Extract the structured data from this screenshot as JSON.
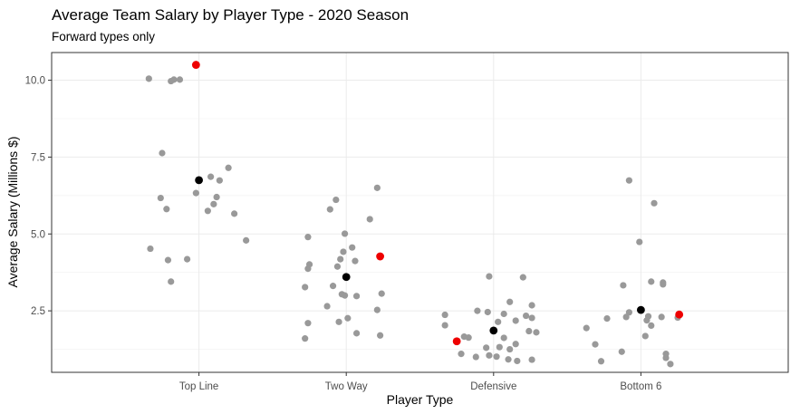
{
  "chart_data": {
    "type": "scatter",
    "title": "Average Team Salary by Player Type - 2020 Season",
    "subtitle": "Forward types only",
    "xlabel": "Player Type",
    "ylabel": "Average Salary (Millions $)",
    "categories": [
      "Top Line",
      "Two Way",
      "Defensive",
      "Bottom 6"
    ],
    "ylim": [
      0.5,
      10.9
    ],
    "y_ticks": [
      2.5,
      5.0,
      7.5,
      10.0
    ],
    "y_tick_labels": [
      "2.5",
      "5.0",
      "7.5",
      "10.0"
    ],
    "grid": true,
    "legend": "none",
    "colors": {
      "points": "#999999",
      "mean": "#000000",
      "highlight": "#ee0000"
    },
    "series": [
      {
        "role": "points",
        "points": [
          {
            "category": "Top Line",
            "jitter": -0.34,
            "y": 10.05
          },
          {
            "category": "Top Line",
            "jitter": -0.19,
            "y": 9.97
          },
          {
            "category": "Top Line",
            "jitter": -0.17,
            "y": 10.02
          },
          {
            "category": "Top Line",
            "jitter": -0.13,
            "y": 10.02
          },
          {
            "category": "Top Line",
            "jitter": -0.25,
            "y": 7.63
          },
          {
            "category": "Top Line",
            "jitter": 0.2,
            "y": 7.15
          },
          {
            "category": "Top Line",
            "jitter": 0.08,
            "y": 6.86
          },
          {
            "category": "Top Line",
            "jitter": 0.14,
            "y": 6.74
          },
          {
            "category": "Top Line",
            "jitter": -0.02,
            "y": 6.33
          },
          {
            "category": "Top Line",
            "jitter": -0.26,
            "y": 6.17
          },
          {
            "category": "Top Line",
            "jitter": 0.12,
            "y": 6.2
          },
          {
            "category": "Top Line",
            "jitter": 0.1,
            "y": 5.97
          },
          {
            "category": "Top Line",
            "jitter": -0.22,
            "y": 5.81
          },
          {
            "category": "Top Line",
            "jitter": 0.06,
            "y": 5.75
          },
          {
            "category": "Top Line",
            "jitter": 0.24,
            "y": 5.66
          },
          {
            "category": "Top Line",
            "jitter": 0.32,
            "y": 4.79
          },
          {
            "category": "Top Line",
            "jitter": -0.33,
            "y": 4.52
          },
          {
            "category": "Top Line",
            "jitter": -0.21,
            "y": 4.15
          },
          {
            "category": "Top Line",
            "jitter": -0.08,
            "y": 4.18
          },
          {
            "category": "Top Line",
            "jitter": -0.19,
            "y": 3.45
          },
          {
            "category": "Two Way",
            "jitter": 0.21,
            "y": 6.5
          },
          {
            "category": "Two Way",
            "jitter": -0.07,
            "y": 6.11
          },
          {
            "category": "Two Way",
            "jitter": -0.11,
            "y": 5.8
          },
          {
            "category": "Two Way",
            "jitter": 0.16,
            "y": 5.48
          },
          {
            "category": "Two Way",
            "jitter": -0.01,
            "y": 5.01
          },
          {
            "category": "Two Way",
            "jitter": -0.26,
            "y": 4.9
          },
          {
            "category": "Two Way",
            "jitter": 0.04,
            "y": 4.56
          },
          {
            "category": "Two Way",
            "jitter": -0.02,
            "y": 4.42
          },
          {
            "category": "Two Way",
            "jitter": -0.04,
            "y": 4.18
          },
          {
            "category": "Two Way",
            "jitter": 0.06,
            "y": 4.12
          },
          {
            "category": "Two Way",
            "jitter": -0.25,
            "y": 4.01
          },
          {
            "category": "Two Way",
            "jitter": -0.26,
            "y": 3.87
          },
          {
            "category": "Two Way",
            "jitter": -0.06,
            "y": 3.94
          },
          {
            "category": "Two Way",
            "jitter": -0.28,
            "y": 3.27
          },
          {
            "category": "Two Way",
            "jitter": -0.09,
            "y": 3.31
          },
          {
            "category": "Two Way",
            "jitter": -0.03,
            "y": 3.04
          },
          {
            "category": "Two Way",
            "jitter": -0.01,
            "y": 3.0
          },
          {
            "category": "Two Way",
            "jitter": 0.07,
            "y": 2.98
          },
          {
            "category": "Two Way",
            "jitter": 0.24,
            "y": 3.06
          },
          {
            "category": "Two Way",
            "jitter": -0.13,
            "y": 2.65
          },
          {
            "category": "Two Way",
            "jitter": 0.21,
            "y": 2.53
          },
          {
            "category": "Two Way",
            "jitter": 0.01,
            "y": 2.26
          },
          {
            "category": "Two Way",
            "jitter": -0.26,
            "y": 2.1
          },
          {
            "category": "Two Way",
            "jitter": -0.05,
            "y": 2.14
          },
          {
            "category": "Two Way",
            "jitter": 0.07,
            "y": 1.77
          },
          {
            "category": "Two Way",
            "jitter": 0.23,
            "y": 1.7
          },
          {
            "category": "Two Way",
            "jitter": -0.28,
            "y": 1.6
          },
          {
            "category": "Defensive",
            "jitter": -0.03,
            "y": 3.62
          },
          {
            "category": "Defensive",
            "jitter": 0.2,
            "y": 3.59
          },
          {
            "category": "Defensive",
            "jitter": 0.11,
            "y": 2.79
          },
          {
            "category": "Defensive",
            "jitter": 0.26,
            "y": 2.68
          },
          {
            "category": "Defensive",
            "jitter": -0.11,
            "y": 2.5
          },
          {
            "category": "Defensive",
            "jitter": -0.04,
            "y": 2.46
          },
          {
            "category": "Defensive",
            "jitter": -0.33,
            "y": 2.37
          },
          {
            "category": "Defensive",
            "jitter": 0.07,
            "y": 2.4
          },
          {
            "category": "Defensive",
            "jitter": 0.22,
            "y": 2.34
          },
          {
            "category": "Defensive",
            "jitter": 0.26,
            "y": 2.27
          },
          {
            "category": "Defensive",
            "jitter": 0.15,
            "y": 2.18
          },
          {
            "category": "Defensive",
            "jitter": 0.03,
            "y": 2.14
          },
          {
            "category": "Defensive",
            "jitter": -0.33,
            "y": 2.03
          },
          {
            "category": "Defensive",
            "jitter": 0.24,
            "y": 1.84
          },
          {
            "category": "Defensive",
            "jitter": 0.29,
            "y": 1.8
          },
          {
            "category": "Defensive",
            "jitter": -0.2,
            "y": 1.66
          },
          {
            "category": "Defensive",
            "jitter": -0.17,
            "y": 1.63
          },
          {
            "category": "Defensive",
            "jitter": 0.07,
            "y": 1.62
          },
          {
            "category": "Defensive",
            "jitter": 0.15,
            "y": 1.42
          },
          {
            "category": "Defensive",
            "jitter": 0.04,
            "y": 1.32
          },
          {
            "category": "Defensive",
            "jitter": -0.05,
            "y": 1.3
          },
          {
            "category": "Defensive",
            "jitter": 0.11,
            "y": 1.25
          },
          {
            "category": "Defensive",
            "jitter": -0.22,
            "y": 1.1
          },
          {
            "category": "Defensive",
            "jitter": -0.03,
            "y": 1.05
          },
          {
            "category": "Defensive",
            "jitter": 0.02,
            "y": 1.01
          },
          {
            "category": "Defensive",
            "jitter": -0.12,
            "y": 1.0
          },
          {
            "category": "Defensive",
            "jitter": 0.1,
            "y": 0.92
          },
          {
            "category": "Defensive",
            "jitter": 0.26,
            "y": 0.91
          },
          {
            "category": "Defensive",
            "jitter": 0.16,
            "y": 0.87
          },
          {
            "category": "Bottom 6",
            "jitter": -0.08,
            "y": 6.74
          },
          {
            "category": "Bottom 6",
            "jitter": 0.09,
            "y": 6.0
          },
          {
            "category": "Bottom 6",
            "jitter": -0.01,
            "y": 4.74
          },
          {
            "category": "Bottom 6",
            "jitter": 0.07,
            "y": 3.45
          },
          {
            "category": "Bottom 6",
            "jitter": 0.15,
            "y": 3.42
          },
          {
            "category": "Bottom 6",
            "jitter": 0.15,
            "y": 3.36
          },
          {
            "category": "Bottom 6",
            "jitter": -0.12,
            "y": 3.33
          },
          {
            "category": "Bottom 6",
            "jitter": -0.08,
            "y": 2.45
          },
          {
            "category": "Bottom 6",
            "jitter": 0.05,
            "y": 2.32
          },
          {
            "category": "Bottom 6",
            "jitter": 0.14,
            "y": 2.3
          },
          {
            "category": "Bottom 6",
            "jitter": -0.1,
            "y": 2.3
          },
          {
            "category": "Bottom 6",
            "jitter": -0.23,
            "y": 2.25
          },
          {
            "category": "Bottom 6",
            "jitter": 0.25,
            "y": 2.28
          },
          {
            "category": "Bottom 6",
            "jitter": 0.04,
            "y": 2.19
          },
          {
            "category": "Bottom 6",
            "jitter": -0.37,
            "y": 1.94
          },
          {
            "category": "Bottom 6",
            "jitter": 0.07,
            "y": 2.02
          },
          {
            "category": "Bottom 6",
            "jitter": 0.03,
            "y": 1.68
          },
          {
            "category": "Bottom 6",
            "jitter": -0.31,
            "y": 1.41
          },
          {
            "category": "Bottom 6",
            "jitter": -0.13,
            "y": 1.17
          },
          {
            "category": "Bottom 6",
            "jitter": 0.17,
            "y": 1.1
          },
          {
            "category": "Bottom 6",
            "jitter": 0.17,
            "y": 0.97
          },
          {
            "category": "Bottom 6",
            "jitter": -0.27,
            "y": 0.86
          },
          {
            "category": "Bottom 6",
            "jitter": 0.2,
            "y": 0.77
          }
        ]
      },
      {
        "role": "mean",
        "points": [
          {
            "category": "Top Line",
            "jitter": 0.0,
            "y": 6.75
          },
          {
            "category": "Two Way",
            "jitter": 0.0,
            "y": 3.6
          },
          {
            "category": "Defensive",
            "jitter": 0.0,
            "y": 1.86
          },
          {
            "category": "Bottom 6",
            "jitter": 0.0,
            "y": 2.53
          }
        ]
      },
      {
        "role": "highlight",
        "points": [
          {
            "category": "Top Line",
            "jitter": -0.02,
            "y": 10.5
          },
          {
            "category": "Two Way",
            "jitter": 0.23,
            "y": 4.27
          },
          {
            "category": "Defensive",
            "jitter": -0.25,
            "y": 1.51
          },
          {
            "category": "Bottom 6",
            "jitter": 0.26,
            "y": 2.38
          }
        ]
      }
    ]
  }
}
